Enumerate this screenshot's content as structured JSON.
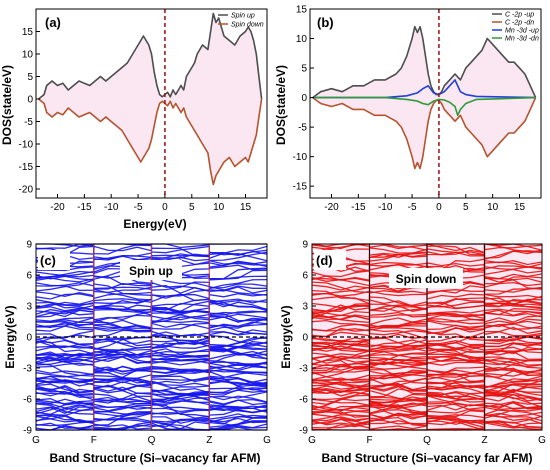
{
  "chart_data": [
    {
      "type": "line",
      "panel": "(a)",
      "xlabel": "Energy(eV)",
      "ylabel": "DOS(state/eV)",
      "xlim": [
        -24,
        19
      ],
      "ylim": [
        -22,
        20
      ],
      "xticks": [
        -20,
        -15,
        -10,
        -5,
        0,
        5,
        10,
        15
      ],
      "yticks": [
        -20,
        -15,
        -10,
        -5,
        0,
        5,
        10,
        15
      ],
      "fermi_level": 0,
      "legend_position": "top-right",
      "series": [
        {
          "name": "Spin up",
          "color": "#4d4d4d",
          "x": [
            -23.5,
            -22.5,
            -22,
            -21,
            -20,
            -19,
            -18,
            -17,
            -16,
            -15,
            -14,
            -13,
            -12,
            -11,
            -10,
            -9,
            -8,
            -7,
            -6,
            -5,
            -4.5,
            -4,
            -3.5,
            -3,
            -2.5,
            -2,
            -1.5,
            -1,
            -0.5,
            0,
            0.5,
            1,
            1.5,
            2,
            2.5,
            3,
            3.5,
            4,
            4.5,
            5,
            5.5,
            6,
            7,
            8,
            8.5,
            9,
            9.5,
            10,
            10.5,
            11,
            12,
            13,
            14,
            15,
            15.5,
            16,
            16.5,
            17,
            17.5,
            18
          ],
          "y": [
            0,
            1,
            3,
            4,
            3,
            3.5,
            2,
            3,
            4,
            3.5,
            3,
            4,
            5,
            4,
            5,
            6,
            7,
            8,
            10,
            12,
            13,
            14,
            13,
            12,
            10,
            6,
            3,
            1,
            0.5,
            1,
            1.5,
            0.5,
            2,
            1,
            2,
            3,
            2,
            5,
            6,
            7,
            8,
            10,
            12,
            11,
            15,
            19,
            17,
            18,
            16,
            14,
            13,
            12,
            14,
            15,
            16,
            15,
            13,
            10,
            5,
            0
          ]
        },
        {
          "name": "Spin down",
          "color": "#b5532f",
          "x": [
            -23.5,
            -22.5,
            -22,
            -21,
            -20,
            -19,
            -18,
            -17,
            -16,
            -15,
            -14,
            -13,
            -12,
            -11,
            -10,
            -9,
            -8,
            -7,
            -6,
            -5,
            -4.5,
            -4,
            -3.5,
            -3,
            -2.5,
            -2,
            -1.5,
            -1,
            -0.5,
            0,
            0.5,
            1,
            1.5,
            2,
            2.5,
            3,
            3.5,
            4,
            4.5,
            5,
            5.5,
            6,
            7,
            8,
            8.5,
            9,
            9.5,
            10,
            10.5,
            11,
            12,
            13,
            14,
            15,
            15.5,
            16,
            16.5,
            17,
            17.5,
            18
          ],
          "y": [
            0,
            -1,
            -3,
            -4,
            -3,
            -3.5,
            -2,
            -3,
            -4,
            -3.5,
            -3,
            -4,
            -5,
            -4,
            -5,
            -6,
            -7,
            -9,
            -11,
            -13,
            -14,
            -13,
            -12,
            -11,
            -9,
            -6,
            -3,
            -1,
            -0.5,
            -1,
            -1.5,
            -0.5,
            -2,
            -1,
            -2,
            -3,
            -2,
            -4,
            -5,
            -6,
            -7,
            -8,
            -10,
            -12,
            -16,
            -19,
            -17,
            -16,
            -15,
            -14,
            -13,
            -15,
            -14,
            -13,
            -14,
            -12,
            -10,
            -8,
            -4,
            0
          ]
        }
      ]
    },
    {
      "type": "line",
      "panel": "(b)",
      "xlabel": "",
      "ylabel": "DOS(state/eV)",
      "xlim": [
        -24,
        19
      ],
      "ylim": [
        -17,
        15
      ],
      "xticks": [
        -20,
        -15,
        -10,
        -5,
        0,
        5,
        10,
        15
      ],
      "yticks": [
        -15,
        -10,
        -5,
        0,
        5,
        10,
        15
      ],
      "fermi_level": 0,
      "legend_position": "top-right",
      "series": [
        {
          "name": "C -2p -up",
          "color": "#4d4d4d",
          "x": [
            -23.5,
            -22,
            -20,
            -18,
            -16,
            -14,
            -12,
            -10,
            -8,
            -7,
            -6,
            -5,
            -4.5,
            -4,
            -3.5,
            -3,
            -2.5,
            -2,
            -1.5,
            -1,
            -0.5,
            0,
            0.5,
            1,
            2,
            3,
            4,
            5,
            6,
            7,
            8,
            9,
            10,
            11,
            12,
            13,
            14,
            15,
            16,
            17,
            18
          ],
          "y": [
            0,
            1,
            1.5,
            1,
            2,
            2,
            3,
            3,
            4,
            5,
            7,
            10,
            12,
            11,
            12,
            10,
            7,
            4,
            2,
            1,
            0.5,
            0.5,
            1,
            2,
            3,
            4,
            3,
            5,
            6,
            7,
            8,
            10,
            9,
            8,
            7,
            6,
            6,
            5,
            4,
            2,
            0
          ]
        },
        {
          "name": "C -2p -dn",
          "color": "#b5532f",
          "x": [
            -23.5,
            -22,
            -20,
            -18,
            -16,
            -14,
            -12,
            -10,
            -8,
            -7,
            -6,
            -5,
            -4.5,
            -4,
            -3.5,
            -3,
            -2.5,
            -2,
            -1.5,
            -1,
            -0.5,
            0,
            0.5,
            1,
            2,
            3,
            4,
            5,
            6,
            7,
            8,
            9,
            10,
            11,
            12,
            13,
            14,
            15,
            16,
            17,
            18
          ],
          "y": [
            0,
            -1,
            -1.5,
            -1,
            -2,
            -2,
            -3,
            -3,
            -4,
            -5,
            -7,
            -10,
            -12,
            -11,
            -12,
            -10,
            -7,
            -4,
            -2,
            -1,
            -0.5,
            -0.5,
            -1,
            -2,
            -3,
            -4,
            -3,
            -5,
            -6,
            -7,
            -8,
            -10,
            -9,
            -8,
            -7,
            -6,
            -6,
            -5,
            -4,
            -2,
            0
          ]
        },
        {
          "name": "Mn -3d -up",
          "color": "#1f3fd6",
          "x": [
            -23.5,
            -10,
            -6,
            -4,
            -3,
            -2,
            -1,
            0,
            1,
            2,
            3,
            3.5,
            4,
            5,
            7,
            18
          ],
          "y": [
            0,
            0,
            0.3,
            0.8,
            1.5,
            2,
            0.8,
            0.5,
            1,
            2,
            3,
            2,
            1,
            0.5,
            0.2,
            0
          ]
        },
        {
          "name": "Mn -3d -dn",
          "color": "#2e9a3a",
          "x": [
            -23.5,
            -10,
            -6,
            -4,
            -3,
            -2,
            -1,
            0,
            1,
            2,
            3,
            3.5,
            4,
            5,
            7,
            18
          ],
          "y": [
            0,
            0,
            -0.3,
            -0.6,
            -1,
            -1.2,
            -0.6,
            -0.3,
            -0.4,
            -0.8,
            -1.5,
            -3,
            -2,
            -1,
            -0.3,
            0
          ]
        }
      ]
    },
    {
      "type": "line",
      "panel": "(c)",
      "subtitle": "Spin up",
      "xlabel": "Band Structure (Si–vacancy far AFM)",
      "ylabel": "Energy(eV)",
      "kpoints": [
        "G",
        "F",
        "Q",
        "Z",
        "G"
      ],
      "ylim": [
        -9,
        9
      ],
      "yticks": [
        -9,
        -6,
        -3,
        0,
        3,
        6,
        9
      ],
      "line_color": "#1515f0",
      "kline_color": "#c0392b",
      "fermi_level": 0
    },
    {
      "type": "line",
      "panel": "(d)",
      "subtitle": "Spin down",
      "xlabel": "Band Structure (Si–vacancy far AFM)",
      "ylabel": "Energy(eV)",
      "kpoints": [
        "G",
        "F",
        "Q",
        "Z",
        "G"
      ],
      "ylim": [
        -9,
        9
      ],
      "yticks": [
        -9,
        -6,
        -3,
        0,
        3,
        6,
        9
      ],
      "line_color": "#e8120f",
      "kline_color": "#111111",
      "fermi_level": 0
    }
  ]
}
